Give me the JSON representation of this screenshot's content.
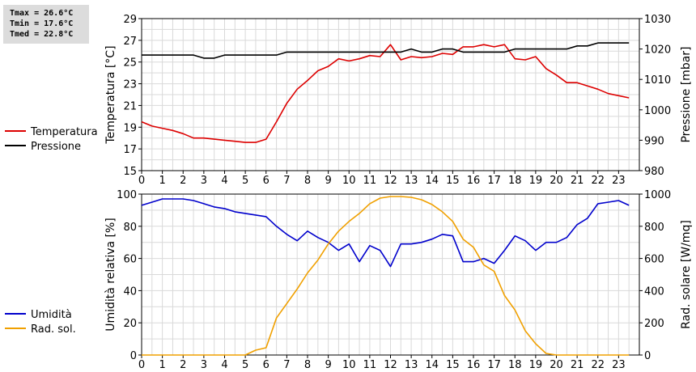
{
  "stats": {
    "tmax": "Tmax = 26.6°C",
    "tmin": "Tmin = 17.6°C",
    "tmed": "Tmed = 22.8°C"
  },
  "chart_data": [
    {
      "type": "line",
      "x_ticks": [
        0,
        1,
        2,
        3,
        4,
        5,
        6,
        7,
        8,
        9,
        10,
        11,
        12,
        13,
        14,
        15,
        16,
        17,
        18,
        19,
        20,
        21,
        22,
        23
      ],
      "xlim": [
        0,
        24
      ],
      "ylabel_left": "Temperatura [°C]",
      "ylim_left": [
        15,
        29
      ],
      "yticks_left": [
        15,
        17,
        19,
        21,
        23,
        25,
        27,
        29
      ],
      "ylabel_right": "Pressione [mbar]",
      "ylim_right": [
        980,
        1030
      ],
      "yticks_right": [
        980,
        990,
        1000,
        1010,
        1020,
        1030
      ],
      "grid": true,
      "legend_placement": "left",
      "series": [
        {
          "name": "Temperatura",
          "axis": "left",
          "color": "#dd0000",
          "x": [
            0,
            0.5,
            1,
            1.5,
            2,
            2.5,
            3,
            3.5,
            4,
            4.5,
            5,
            5.5,
            6,
            6.5,
            7,
            7.5,
            8,
            8.5,
            9,
            9.5,
            10,
            10.5,
            11,
            11.5,
            12,
            12.5,
            13,
            13.5,
            14,
            14.5,
            15,
            15.5,
            16,
            16.5,
            17,
            17.5,
            18,
            18.5,
            19,
            19.5,
            20,
            20.5,
            21,
            21.5,
            22,
            22.5,
            23,
            23.5
          ],
          "values": [
            19.5,
            19.1,
            18.9,
            18.7,
            18.4,
            18.0,
            18.0,
            17.9,
            17.8,
            17.7,
            17.6,
            17.6,
            17.9,
            19.5,
            21.2,
            22.5,
            23.3,
            24.2,
            24.6,
            25.3,
            25.1,
            25.3,
            25.6,
            25.5,
            26.6,
            25.2,
            25.5,
            25.4,
            25.5,
            25.8,
            25.7,
            26.4,
            26.4,
            26.6,
            26.4,
            26.6,
            25.3,
            25.2,
            25.5,
            24.4,
            23.8,
            23.1,
            23.1,
            22.8,
            22.5,
            22.1,
            21.9,
            21.7
          ]
        },
        {
          "name": "Pressione",
          "axis": "right",
          "color": "#000000",
          "x": [
            0,
            0.5,
            1,
            1.5,
            2,
            2.5,
            3,
            3.5,
            4,
            4.5,
            5,
            5.5,
            6,
            6.5,
            7,
            7.5,
            8,
            8.5,
            9,
            9.5,
            10,
            10.5,
            11,
            11.5,
            12,
            12.5,
            13,
            13.5,
            14,
            14.5,
            15,
            15.5,
            16,
            16.5,
            17,
            17.5,
            18,
            18.5,
            19,
            19.5,
            20,
            20.5,
            21,
            21.5,
            22,
            22.5,
            23,
            23.5
          ],
          "values": [
            1018,
            1018,
            1018,
            1018,
            1018,
            1018,
            1017,
            1017,
            1018,
            1018,
            1018,
            1018,
            1018,
            1018,
            1019,
            1019,
            1019,
            1019,
            1019,
            1019,
            1019,
            1019,
            1019,
            1019,
            1019,
            1019,
            1020,
            1019,
            1019,
            1020,
            1020,
            1019,
            1019,
            1019,
            1019,
            1019,
            1020,
            1020,
            1020,
            1020,
            1020,
            1020,
            1021,
            1021,
            1022,
            1022,
            1022,
            1022
          ]
        }
      ]
    },
    {
      "type": "line",
      "x_ticks": [
        0,
        1,
        2,
        3,
        4,
        5,
        6,
        7,
        8,
        9,
        10,
        11,
        12,
        13,
        14,
        15,
        16,
        17,
        18,
        19,
        20,
        21,
        22,
        23
      ],
      "xlim": [
        0,
        24
      ],
      "ylabel_left": "Umidità relativa [%]",
      "ylim_left": [
        0,
        100
      ],
      "yticks_left": [
        0,
        20,
        40,
        60,
        80,
        100
      ],
      "ylabel_right": "Rad. solare [W/mq]",
      "ylim_right": [
        0,
        1000
      ],
      "yticks_right": [
        0,
        200,
        400,
        600,
        800,
        1000
      ],
      "grid": true,
      "legend_placement": "left",
      "series": [
        {
          "name": "Umidità",
          "axis": "left",
          "color": "#0000cc",
          "x": [
            0,
            0.5,
            1,
            1.5,
            2,
            2.5,
            3,
            3.5,
            4,
            4.5,
            5,
            5.5,
            6,
            6.5,
            7,
            7.5,
            8,
            8.5,
            9,
            9.5,
            10,
            10.5,
            11,
            11.5,
            12,
            12.5,
            13,
            13.5,
            14,
            14.5,
            15,
            15.5,
            16,
            16.5,
            17,
            17.5,
            18,
            18.5,
            19,
            19.5,
            20,
            20.5,
            21,
            21.5,
            22,
            22.5,
            23,
            23.5
          ],
          "values": [
            93,
            95,
            97,
            97,
            97,
            96,
            94,
            92,
            91,
            89,
            88,
            87,
            86,
            80,
            75,
            71,
            77,
            73,
            70,
            65,
            69,
            58,
            68,
            65,
            55,
            69,
            69,
            70,
            72,
            75,
            74,
            58,
            58,
            60,
            57,
            65,
            74,
            71,
            65,
            70,
            70,
            73,
            81,
            85,
            94,
            95,
            96,
            93
          ]
        },
        {
          "name": "Rad. sol.",
          "axis": "right",
          "color": "#f0a000",
          "x": [
            0,
            0.5,
            1,
            1.5,
            2,
            2.5,
            3,
            3.5,
            4,
            4.5,
            5,
            5.5,
            6,
            6.5,
            7,
            7.5,
            8,
            8.5,
            9,
            9.5,
            10,
            10.5,
            11,
            11.5,
            12,
            12.5,
            13,
            13.5,
            14,
            14.5,
            15,
            15.5,
            16,
            16.5,
            17,
            17.5,
            18,
            18.5,
            19,
            19.5,
            20,
            20.5,
            21,
            21.5,
            22,
            22.5,
            23,
            23.5
          ],
          "values": [
            0,
            0,
            0,
            0,
            0,
            0,
            0,
            0,
            0,
            0,
            0,
            30,
            45,
            230,
            320,
            410,
            510,
            590,
            690,
            770,
            830,
            880,
            940,
            975,
            985,
            985,
            980,
            965,
            935,
            890,
            830,
            720,
            670,
            560,
            520,
            370,
            280,
            150,
            70,
            10,
            0,
            0,
            0,
            0,
            0,
            0,
            0,
            0
          ]
        }
      ]
    }
  ]
}
